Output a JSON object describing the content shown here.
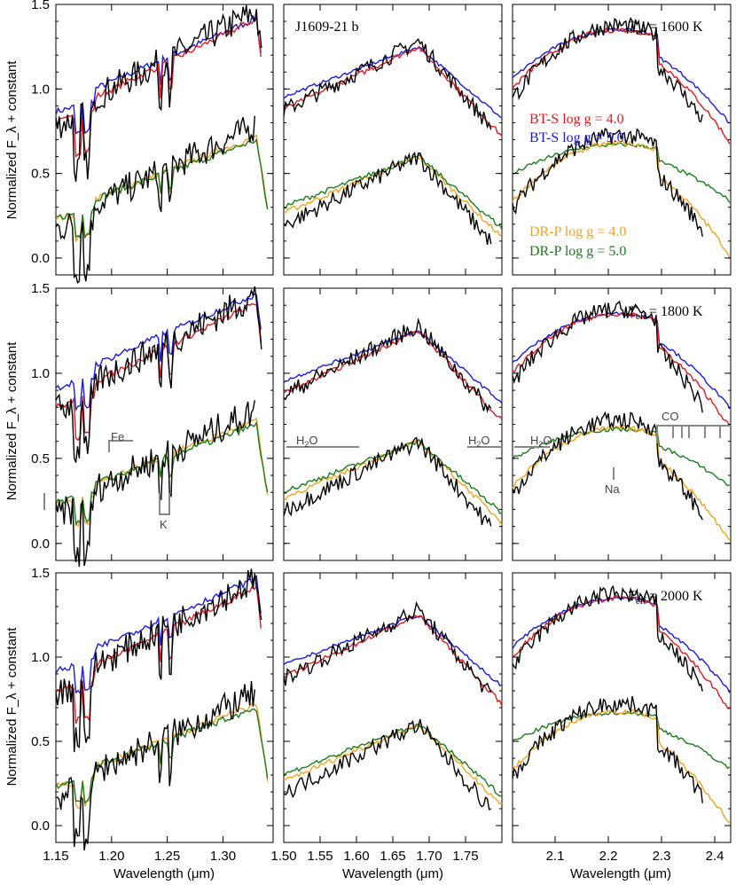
{
  "figure": {
    "ylabel": "Normalized F_λ + constant",
    "xlabel": "Wavelength (μm)"
  },
  "chart_data": {
    "type": "line",
    "ylim": [
      -0.1,
      1.5
    ],
    "yticks": [
      "0.0",
      "0.5",
      "1.0",
      "1.5"
    ],
    "columns": [
      {
        "xlim": [
          1.15,
          1.345
        ],
        "xticks": [
          "1.15",
          "1.20",
          "1.25",
          "1.30"
        ]
      },
      {
        "xlim": [
          1.5,
          1.8
        ],
        "xticks": [
          "1.50",
          "1.55",
          "1.60",
          "1.65",
          "1.70",
          "1.75"
        ]
      },
      {
        "xlim": [
          2.02,
          2.43
        ],
        "xticks": [
          "2.1",
          "2.2",
          "2.3",
          "2.4"
        ]
      }
    ],
    "rows": [
      {
        "teff_symbol": "T",
        "teff_sub": "eff",
        "teff_value": "= 1600 K"
      },
      {
        "teff_symbol": "T",
        "teff_sub": "eff",
        "teff_value": "= 1800 K"
      },
      {
        "teff_symbol": "T",
        "teff_sub": "eff",
        "teff_value": "= 2000 K"
      }
    ],
    "object_label": "J1609-21 b",
    "legend": [
      {
        "label": "BT-S  log g = 4.0",
        "color": "#e8181f"
      },
      {
        "label": "BT-S  log g = 5.0",
        "color": "#1a1ae6"
      },
      {
        "label": "DR-P  log g = 4.0",
        "color": "#f5a21c"
      },
      {
        "label": "DR-P  log g = 5.0",
        "color": "#1e7d1e"
      }
    ],
    "series_colors": {
      "observed": "#000000",
      "bts_logg4": "#e8181f",
      "bts_logg5": "#1a1ae6",
      "drp_logg4": "#f5a21c",
      "drp_logg5": "#1e7d1e"
    },
    "annotations": {
      "fe": "Fe",
      "k": "K",
      "h2o": "H",
      "h2o_sub": "2",
      "h2o_tail": "O",
      "na": "Na",
      "co": "CO"
    }
  }
}
